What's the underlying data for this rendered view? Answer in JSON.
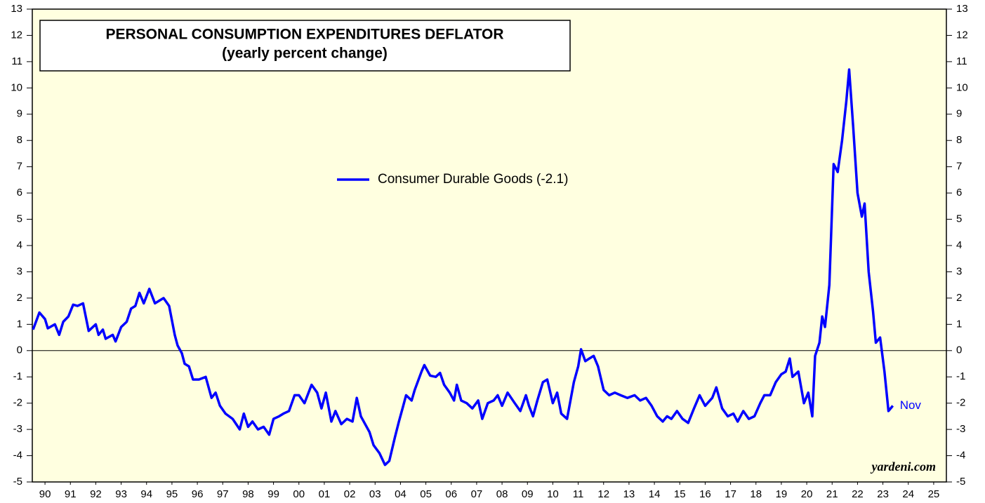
{
  "chart_data": {
    "type": "line",
    "title": "PERSONAL CONSUMPTION EXPENDITURES DEFLATOR",
    "subtitle": "(yearly percent change)",
    "annotation": "Nov",
    "source": "yardeni.com",
    "xlim": [
      1990,
      2026
    ],
    "xticks": [
      {
        "value": 1990.5,
        "label": "90"
      },
      {
        "value": 1991.5,
        "label": "91"
      },
      {
        "value": 1992.5,
        "label": "92"
      },
      {
        "value": 1993.5,
        "label": "93"
      },
      {
        "value": 1994.5,
        "label": "94"
      },
      {
        "value": 1995.5,
        "label": "95"
      },
      {
        "value": 1996.5,
        "label": "96"
      },
      {
        "value": 1997.5,
        "label": "97"
      },
      {
        "value": 1998.5,
        "label": "98"
      },
      {
        "value": 1999.5,
        "label": "99"
      },
      {
        "value": 2000.5,
        "label": "00"
      },
      {
        "value": 2001.5,
        "label": "01"
      },
      {
        "value": 2002.5,
        "label": "02"
      },
      {
        "value": 2003.5,
        "label": "03"
      },
      {
        "value": 2004.5,
        "label": "04"
      },
      {
        "value": 2005.5,
        "label": "05"
      },
      {
        "value": 2006.5,
        "label": "06"
      },
      {
        "value": 2007.5,
        "label": "07"
      },
      {
        "value": 2008.5,
        "label": "08"
      },
      {
        "value": 2009.5,
        "label": "09"
      },
      {
        "value": 2010.5,
        "label": "10"
      },
      {
        "value": 2011.5,
        "label": "11"
      },
      {
        "value": 2012.5,
        "label": "12"
      },
      {
        "value": 2013.5,
        "label": "13"
      },
      {
        "value": 2014.5,
        "label": "14"
      },
      {
        "value": 2015.5,
        "label": "15"
      },
      {
        "value": 2016.5,
        "label": "16"
      },
      {
        "value": 2017.5,
        "label": "17"
      },
      {
        "value": 2018.5,
        "label": "18"
      },
      {
        "value": 2019.5,
        "label": "19"
      },
      {
        "value": 2020.5,
        "label": "20"
      },
      {
        "value": 2021.5,
        "label": "21"
      },
      {
        "value": 2022.5,
        "label": "22"
      },
      {
        "value": 2023.5,
        "label": "23"
      },
      {
        "value": 2024.5,
        "label": "24"
      },
      {
        "value": 2025.5,
        "label": "25"
      }
    ],
    "ylim": [
      -5,
      13
    ],
    "yticks": [
      -5,
      -4,
      -3,
      -2,
      -1,
      0,
      1,
      2,
      3,
      4,
      5,
      6,
      7,
      8,
      9,
      10,
      11,
      12,
      13
    ],
    "legend": "top-center",
    "x": [
      1990.03,
      1990.28,
      1990.5,
      1990.61,
      1990.89,
      1991.06,
      1991.22,
      1991.42,
      1991.61,
      1991.78,
      1992.0,
      1992.22,
      1992.5,
      1992.61,
      1992.78,
      1992.89,
      1993.17,
      1993.28,
      1993.5,
      1993.72,
      1993.89,
      1994.06,
      1994.22,
      1994.39,
      1994.61,
      1994.83,
      1995.17,
      1995.39,
      1995.61,
      1995.72,
      1995.89,
      1996.0,
      1996.17,
      1996.33,
      1996.56,
      1996.83,
      1997.06,
      1997.22,
      1997.39,
      1997.61,
      1997.89,
      1998.17,
      1998.33,
      1998.5,
      1998.67,
      1998.89,
      1999.11,
      1999.33,
      1999.5,
      1999.72,
      1999.89,
      2000.11,
      2000.33,
      2000.5,
      2000.72,
      2001.0,
      2001.22,
      2001.39,
      2001.56,
      2001.78,
      2001.94,
      2002.17,
      2002.39,
      2002.61,
      2002.78,
      2002.94,
      2003.11,
      2003.28,
      2003.44,
      2003.67,
      2003.89,
      2004.06,
      2004.28,
      2004.44,
      2004.61,
      2004.72,
      2004.94,
      2005.06,
      2005.33,
      2005.44,
      2005.67,
      2005.89,
      2006.06,
      2006.22,
      2006.44,
      2006.61,
      2006.72,
      2006.89,
      2007.11,
      2007.33,
      2007.56,
      2007.72,
      2007.94,
      2008.17,
      2008.33,
      2008.5,
      2008.72,
      2009.0,
      2009.22,
      2009.44,
      2009.56,
      2009.72,
      2009.89,
      2010.11,
      2010.28,
      2010.5,
      2010.67,
      2010.83,
      2011.06,
      2011.33,
      2011.5,
      2011.61,
      2011.78,
      2011.94,
      2012.11,
      2012.28,
      2012.5,
      2012.72,
      2012.94,
      2013.17,
      2013.44,
      2013.72,
      2013.94,
      2014.17,
      2014.39,
      2014.61,
      2014.83,
      2015.0,
      2015.17,
      2015.39,
      2015.61,
      2015.83,
      2016.06,
      2016.28,
      2016.5,
      2016.78,
      2016.94,
      2017.17,
      2017.39,
      2017.61,
      2017.78,
      2018.0,
      2018.22,
      2018.44,
      2018.67,
      2018.83,
      2019.06,
      2019.28,
      2019.5,
      2019.67,
      2019.83,
      2019.94,
      2020.17,
      2020.39,
      2020.56,
      2020.72,
      2020.83,
      2021.0,
      2021.11,
      2021.22,
      2021.39,
      2021.56,
      2021.72,
      2021.89,
      2022.06,
      2022.17,
      2022.33,
      2022.5,
      2022.67,
      2022.78,
      2022.94,
      2023.11,
      2023.22,
      2023.39,
      2023.56,
      2023.72,
      2023.89
    ],
    "series": [
      {
        "name": "Consumer Durable Goods (-2.1)",
        "color": "#0000ff",
        "values": [
          0.8,
          1.45,
          1.2,
          0.85,
          1.0,
          0.6,
          1.1,
          1.3,
          1.75,
          1.7,
          1.8,
          0.75,
          1.0,
          0.6,
          0.8,
          0.45,
          0.6,
          0.35,
          0.9,
          1.1,
          1.6,
          1.7,
          2.2,
          1.8,
          2.35,
          1.8,
          2.0,
          1.7,
          0.6,
          0.2,
          -0.1,
          -0.5,
          -0.6,
          -1.1,
          -1.1,
          -1.0,
          -1.8,
          -1.6,
          -2.1,
          -2.4,
          -2.6,
          -3.0,
          -2.4,
          -2.9,
          -2.7,
          -3.0,
          -2.9,
          -3.2,
          -2.6,
          -2.5,
          -2.4,
          -2.3,
          -1.7,
          -1.7,
          -2.0,
          -1.3,
          -1.6,
          -2.2,
          -1.6,
          -2.7,
          -2.3,
          -2.8,
          -2.6,
          -2.7,
          -1.8,
          -2.5,
          -2.8,
          -3.1,
          -3.6,
          -3.9,
          -4.35,
          -4.2,
          -3.3,
          -2.7,
          -2.1,
          -1.7,
          -1.9,
          -1.5,
          -0.8,
          -0.55,
          -0.95,
          -1.0,
          -0.85,
          -1.3,
          -1.6,
          -1.9,
          -1.3,
          -1.9,
          -2.0,
          -2.2,
          -1.9,
          -2.6,
          -2.0,
          -1.9,
          -1.7,
          -2.1,
          -1.6,
          -2.0,
          -2.3,
          -1.7,
          -2.1,
          -2.5,
          -1.9,
          -1.2,
          -1.1,
          -2.0,
          -1.6,
          -2.4,
          -2.6,
          -1.2,
          -0.6,
          0.05,
          -0.4,
          -0.3,
          -0.2,
          -0.6,
          -1.5,
          -1.7,
          -1.6,
          -1.7,
          -1.8,
          -1.7,
          -1.9,
          -1.8,
          -2.1,
          -2.5,
          -2.7,
          -2.5,
          -2.6,
          -2.3,
          -2.6,
          -2.75,
          -2.2,
          -1.7,
          -2.1,
          -1.8,
          -1.4,
          -2.2,
          -2.5,
          -2.4,
          -2.7,
          -2.3,
          -2.6,
          -2.5,
          -2.0,
          -1.7,
          -1.7,
          -1.2,
          -0.9,
          -0.8,
          -0.3,
          -1.0,
          -0.8,
          -2.0,
          -1.6,
          -2.5,
          -0.2,
          0.3,
          1.3,
          0.9,
          2.5,
          7.1,
          6.8,
          8.0,
          9.5,
          10.7,
          8.5,
          6.0,
          5.1,
          5.6,
          3.0,
          1.5,
          0.3,
          0.5,
          -0.8,
          -2.3,
          -2.1
        ]
      }
    ]
  }
}
